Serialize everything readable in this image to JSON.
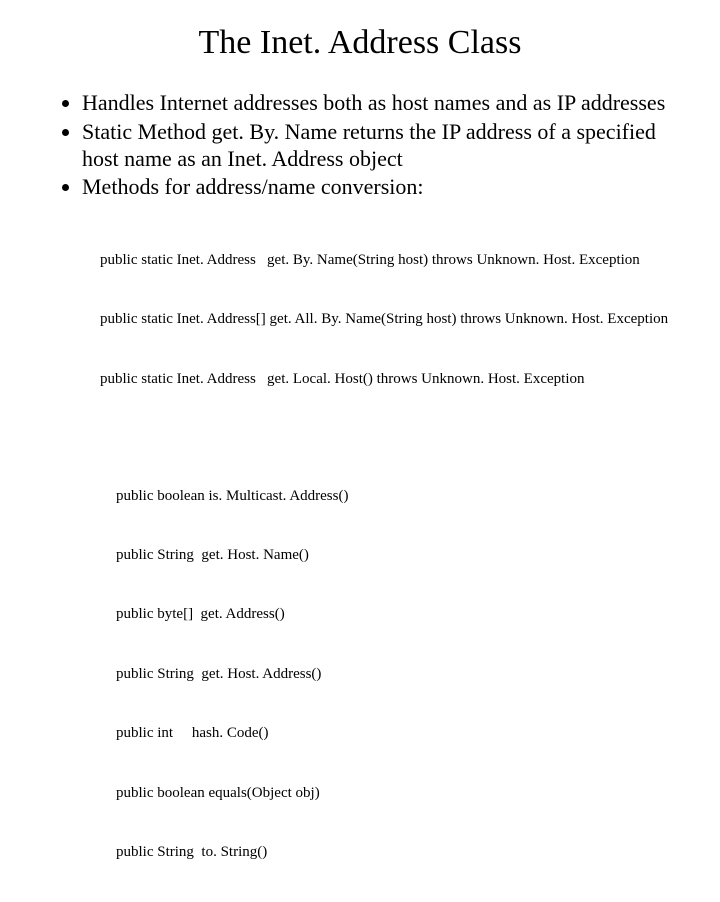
{
  "slide": {
    "title": "The Inet. Address Class",
    "bullets": [
      "Handles Internet addresses both as host names and as IP addresses",
      "Static Method get. By. Name returns the IP address of a specified host name as an Inet. Address object",
      "Methods for address/name conversion:"
    ],
    "code1": [
      "public static Inet. Address   get. By. Name(String host) throws Unknown. Host. Exception",
      "public static Inet. Address[] get. All. By. Name(String host) throws Unknown. Host. Exception",
      "public static Inet. Address   get. Local. Host() throws Unknown. Host. Exception"
    ],
    "code2": [
      "public boolean is. Multicast. Address()",
      "public String  get. Host. Name()",
      "public byte[]  get. Address()",
      "public String  get. Host. Address()",
      "public int     hash. Code()",
      "public boolean equals(Object obj)",
      "public String  to. String()"
    ]
  },
  "style": {
    "background_color": "#ffffff",
    "text_color": "#000000",
    "font_family": "Times New Roman",
    "title_fontsize": 34,
    "bullet_fontsize": 22,
    "code_fontsize": 15,
    "slide_width": 720,
    "slide_height": 540
  }
}
